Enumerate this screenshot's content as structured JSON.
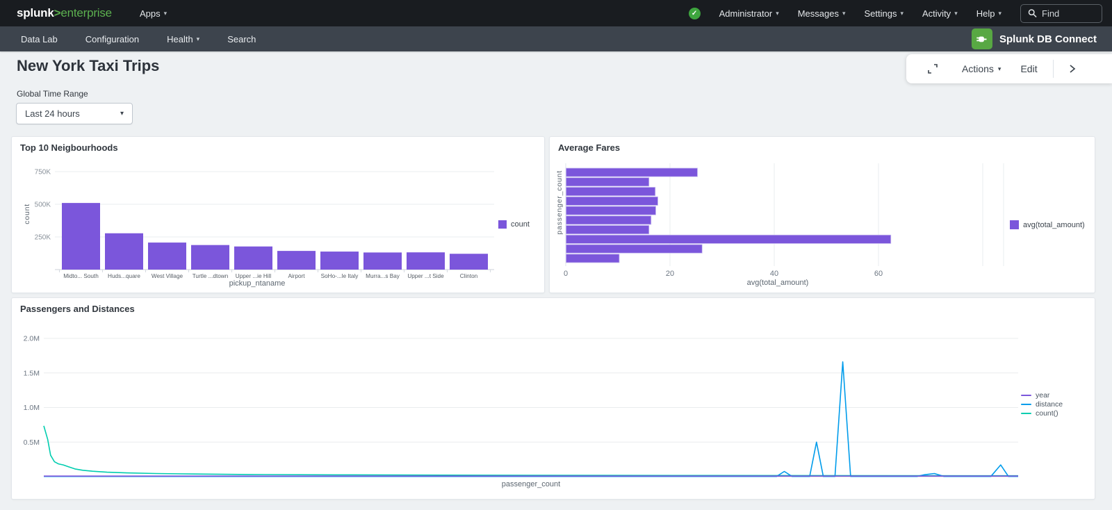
{
  "topnav": {
    "logo_name": "splunk",
    "logo_gt": ">",
    "logo_product": "enterprise",
    "apps_label": "Apps",
    "admin_label": "Administrator",
    "messages_label": "Messages",
    "settings_label": "Settings",
    "activity_label": "Activity",
    "help_label": "Help",
    "find_placeholder": "Find"
  },
  "appnav": {
    "items": [
      "Data Lab",
      "Configuration",
      "Health",
      "Search"
    ],
    "app_title": "Splunk DB Connect"
  },
  "toolbar": {
    "actions_label": "Actions",
    "edit_label": "Edit"
  },
  "page": {
    "title": "New York Taxi Trips",
    "time_range_label": "Global Time Range",
    "time_range_value": "Last 24 hours"
  },
  "colors": {
    "accent_purple": "#7b56db",
    "accent_blue": "#009ceb",
    "accent_teal": "#00cdaf",
    "splunk_green": "#5cb04f",
    "status_green": "#3ea53e",
    "db_icon_green": "#58a843"
  },
  "chart_data": [
    {
      "type": "bar",
      "title": "Top 10 Neigbourhoods",
      "categories": [
        "Midto... South",
        "Huds...quare",
        "West Village",
        "Turtle ...dtown",
        "Upper ...ie Hill",
        "Airport",
        "SoHo-...le Italy",
        "Murra...s Bay",
        "Upper ...t Side",
        "Clinton"
      ],
      "values": [
        510000,
        278000,
        207000,
        188000,
        177000,
        143000,
        138000,
        131000,
        132000,
        121000
      ],
      "xlabel": "pickup_ntaname",
      "ylabel": "count",
      "legend": [
        "count"
      ],
      "ylim": [
        0,
        800000
      ],
      "yticks": [
        {
          "v": 250000,
          "label": "250K"
        },
        {
          "v": 500000,
          "label": "500K"
        },
        {
          "v": 750000,
          "label": "750K"
        }
      ],
      "color": "#7b56db"
    },
    {
      "type": "bar-horizontal",
      "title": "Average Fares",
      "values": [
        25.2,
        15.9,
        17.1,
        17.6,
        17.2,
        16.3,
        15.9,
        62.3,
        26.1,
        10.2
      ],
      "xlabel": "avg(total_amount)",
      "ylabel": "passenger_count",
      "legend": [
        "avg(total_amount)"
      ],
      "xlim": [
        0,
        84
      ],
      "xticks": [
        {
          "v": 0,
          "label": "0"
        },
        {
          "v": 20,
          "label": "20"
        },
        {
          "v": 40,
          "label": "40"
        },
        {
          "v": 60,
          "label": "60"
        },
        {
          "v": 80,
          "label": ""
        }
      ],
      "color": "#7b56db"
    },
    {
      "type": "line",
      "title": "Passengers and Distances",
      "xlabel": "passenger_count",
      "ylim": [
        0,
        2200000
      ],
      "yticks": [
        {
          "v": 500000,
          "label": "0.5M"
        },
        {
          "v": 1000000,
          "label": "1.0M"
        },
        {
          "v": 1500000,
          "label": "1.5M"
        },
        {
          "v": 2000000,
          "label": "2.0M"
        }
      ],
      "legend_position": "right",
      "series": [
        {
          "name": "year",
          "color": "#7b56db",
          "points": [
            [
              0,
              8000
            ],
            [
              1,
              8000
            ]
          ]
        },
        {
          "name": "distance",
          "color": "#009ceb",
          "points": [
            [
              0,
              3000
            ],
            [
              0.7,
              3000
            ],
            [
              0.752,
              3000
            ],
            [
              0.76,
              75000
            ],
            [
              0.768,
              3000
            ],
            [
              0.786,
              3000
            ],
            [
              0.793,
              500000
            ],
            [
              0.8,
              3000
            ],
            [
              0.812,
              3000
            ],
            [
              0.82,
              1660000
            ],
            [
              0.828,
              3000
            ],
            [
              0.896,
              3000
            ],
            [
              0.904,
              28000
            ],
            [
              0.914,
              45000
            ],
            [
              0.924,
              3000
            ],
            [
              0.972,
              3000
            ],
            [
              0.982,
              170000
            ],
            [
              0.99,
              3000
            ],
            [
              1,
              3000
            ]
          ]
        },
        {
          "name": "count()",
          "color": "#00cdaf",
          "points": [
            [
              0,
              735000
            ],
            [
              0.004,
              540000
            ],
            [
              0.007,
              310000
            ],
            [
              0.011,
              215000
            ],
            [
              0.015,
              185000
            ],
            [
              0.02,
              170000
            ],
            [
              0.025,
              145000
            ],
            [
              0.032,
              112000
            ],
            [
              0.04,
              92000
            ],
            [
              0.05,
              78000
            ],
            [
              0.065,
              64000
            ],
            [
              0.085,
              54000
            ],
            [
              0.115,
              45000
            ],
            [
              0.155,
              38000
            ],
            [
              0.21,
              31000
            ],
            [
              0.3,
              26000
            ],
            [
              0.45,
              21000
            ],
            [
              0.65,
              17000
            ],
            [
              0.85,
              14000
            ],
            [
              1,
              13000
            ]
          ]
        }
      ]
    }
  ]
}
